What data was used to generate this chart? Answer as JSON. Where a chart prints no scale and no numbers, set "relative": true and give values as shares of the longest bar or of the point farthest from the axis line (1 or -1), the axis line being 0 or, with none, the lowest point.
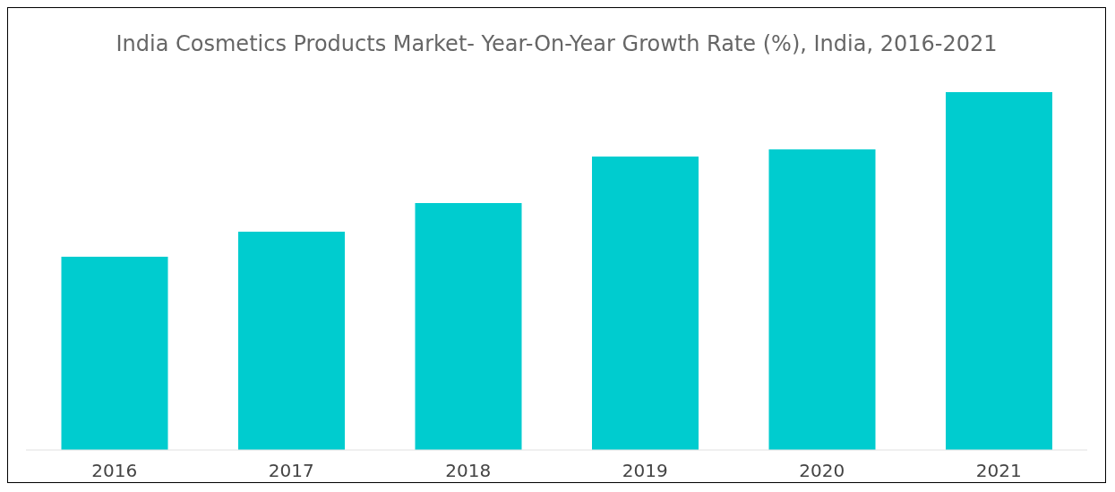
{
  "chart_data": {
    "type": "bar",
    "title": "India Cosmetics Products Market- Year-On-Year Growth Rate (%), India, 2016-2021",
    "categories": [
      "2016",
      "2017",
      "2018",
      "2019",
      "2020",
      "2021"
    ],
    "values": [
      0.54,
      0.61,
      0.69,
      0.82,
      0.84,
      1
    ],
    "color": "#00cccf",
    "relative": true
  }
}
